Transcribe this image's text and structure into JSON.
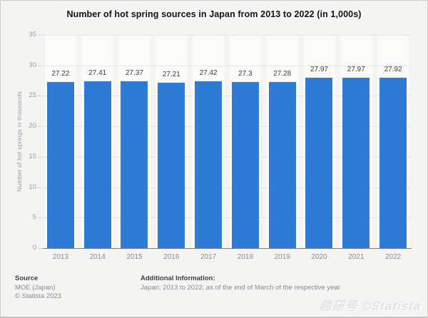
{
  "title": "Number of hot spring sources in Japan from 2013 to 2022 (in 1,000s)",
  "chart_data": {
    "type": "bar",
    "title": "Number of hot spring sources in Japan from 2013 to 2022 (in 1,000s)",
    "categories": [
      "2013",
      "2014",
      "2015",
      "2016",
      "2017",
      "2018",
      "2019",
      "2020",
      "2021",
      "2022"
    ],
    "values": [
      27.22,
      27.41,
      27.37,
      27.21,
      27.42,
      27.3,
      27.28,
      27.97,
      27.97,
      27.92
    ],
    "xlabel": "",
    "ylabel": "Number of hot springs in thousands",
    "ylim": [
      0,
      35
    ],
    "ytick_step": 5,
    "grid": true,
    "legend": "none",
    "bar_color": "#2e7bd6",
    "band_color": "#fbfbfa",
    "background_color": "#f4f4f3"
  },
  "footer": {
    "source_label": "Source",
    "source_line1": "MOE (Japan)",
    "source_line2": "© Statista 2023",
    "additional_label": "Additional Information:",
    "additional_text": "Japan; 2013 to 2022; as of the end of March of the respective year"
  },
  "watermark": "趋研号 ©Statista"
}
